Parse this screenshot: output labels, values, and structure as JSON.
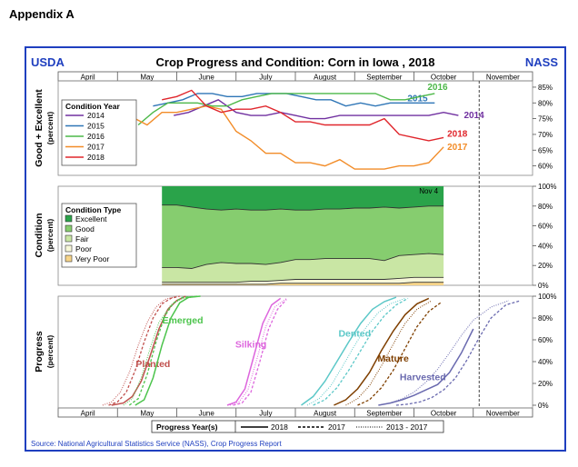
{
  "page": {
    "heading": "Appendix A"
  },
  "colors": {
    "frame": "#1f3fbf",
    "blue_text": "#1f3fbf"
  },
  "header": {
    "left": "USDA",
    "title": "Crop Progress and Condition: Corn in Iowa , 2018",
    "right": "NASS"
  },
  "months": [
    "April",
    "May",
    "June",
    "July",
    "August",
    "September",
    "October",
    "November"
  ],
  "top_panel": {
    "ylabel_line1": "Good + Excellent",
    "ylabel_line2": "(percent)",
    "ticks": [
      "60%",
      "65%",
      "70%",
      "75%",
      "80%",
      "85%"
    ],
    "tick_values": [
      60,
      65,
      70,
      75,
      80,
      85
    ],
    "ylim": [
      57,
      87
    ],
    "legend_title": "Condition Year",
    "series": [
      {
        "name": "2014",
        "color": "#7030a0",
        "end_label": "2014",
        "x": [
          5.95,
          6.2,
          6.45,
          6.7,
          7.0,
          7.25,
          7.5,
          7.75,
          8.0,
          8.25,
          8.5,
          8.75,
          9.0,
          9.25,
          9.5,
          9.75,
          10.0,
          10.25,
          10.5,
          10.75
        ],
        "y": [
          76,
          77,
          79,
          81,
          77,
          76,
          76,
          77,
          76,
          75,
          75,
          76,
          76,
          76,
          76,
          76,
          76,
          76,
          77,
          76
        ]
      },
      {
        "name": "2015",
        "color": "#2e75b6",
        "end_label": "2015",
        "x": [
          5.6,
          5.85,
          6.1,
          6.35,
          6.6,
          6.85,
          7.1,
          7.35,
          7.6,
          7.85,
          8.1,
          8.35,
          8.6,
          8.85,
          9.1,
          9.35,
          9.6,
          9.85,
          10.1,
          10.35
        ],
        "y": [
          79,
          80,
          81,
          83,
          83,
          82,
          82,
          83,
          83,
          83,
          82,
          81,
          81,
          79,
          80,
          79,
          80,
          80,
          80,
          80
        ]
      },
      {
        "name": "2016",
        "color": "#4cb848",
        "end_label": "2016",
        "x": [
          5.35,
          5.6,
          5.85,
          6.1,
          6.35,
          6.6,
          6.85,
          7.1,
          7.35,
          7.6,
          7.85,
          8.1,
          8.35,
          8.6,
          8.85,
          9.1,
          9.35,
          9.6,
          9.85,
          10.1,
          10.35
        ],
        "y": [
          73,
          77,
          80,
          80,
          80,
          79,
          79,
          81,
          82,
          83,
          83,
          83,
          83,
          83,
          83,
          83,
          83,
          81,
          81,
          82,
          83
        ]
      },
      {
        "name": "2017",
        "color": "#f28c28",
        "end_label": "2017",
        "x": [
          5.3,
          5.5,
          5.75,
          6.0,
          6.25,
          6.5,
          6.75,
          7.0,
          7.25,
          7.5,
          7.75,
          8.0,
          8.25,
          8.5,
          8.75,
          9.0,
          9.25,
          9.5,
          9.75,
          10.0,
          10.25,
          10.5
        ],
        "y": [
          75,
          73,
          77,
          77,
          78,
          79,
          78,
          71,
          68,
          64,
          64,
          61,
          61,
          60,
          62,
          59,
          59,
          59,
          60,
          60,
          61,
          66
        ]
      },
      {
        "name": "2018",
        "color": "#e0262c",
        "end_label": "2018",
        "x": [
          5.75,
          6.0,
          6.25,
          6.5,
          6.75,
          7.0,
          7.25,
          7.5,
          7.75,
          8.0,
          8.25,
          8.5,
          8.75,
          9.0,
          9.25,
          9.5,
          9.75,
          10.0,
          10.25,
          10.5
        ],
        "y": [
          81,
          82,
          84,
          79,
          77,
          78,
          78,
          79,
          77,
          74,
          74,
          73,
          73,
          73,
          73,
          75,
          70,
          69,
          68,
          69
        ]
      }
    ]
  },
  "middle_panel": {
    "ylabel_line1": "Condition",
    "ylabel_line2": "(percent)",
    "ticks": [
      "0%",
      "20%",
      "40%",
      "60%",
      "80%",
      "100%"
    ],
    "tick_values": [
      0,
      20,
      40,
      60,
      80,
      100
    ],
    "ylim": [
      0,
      100
    ],
    "legend_title": "Condition Type",
    "date_label": "Nov 4",
    "types": [
      {
        "name": "Excellent",
        "color": "#2aa34a"
      },
      {
        "name": "Good",
        "color": "#86cd6f"
      },
      {
        "name": "Fair",
        "color": "#c9e6a4"
      },
      {
        "name": "Poor",
        "color": "#f7f7d9"
      },
      {
        "name": "Very Poor",
        "color": "#f7d58a"
      }
    ],
    "x": [
      5.75,
      6.0,
      6.25,
      6.5,
      6.75,
      7.0,
      7.25,
      7.5,
      7.75,
      8.0,
      8.25,
      8.5,
      8.75,
      9.0,
      9.25,
      9.5,
      9.75,
      10.0,
      10.25,
      10.5
    ],
    "cum_very_poor": [
      1,
      1,
      1,
      1,
      1,
      1,
      1,
      1,
      2,
      2,
      2,
      2,
      2,
      2,
      2,
      2,
      2,
      3,
      3,
      3
    ],
    "cum_poor": [
      3,
      3,
      3,
      3,
      3,
      3,
      4,
      4,
      5,
      6,
      6,
      6,
      6,
      6,
      6,
      6,
      7,
      8,
      8,
      8
    ],
    "cum_fair": [
      18,
      18,
      17,
      21,
      23,
      22,
      22,
      21,
      23,
      26,
      26,
      27,
      27,
      27,
      27,
      25,
      30,
      31,
      32,
      31
    ],
    "cum_good": [
      81,
      81,
      79,
      77,
      76,
      77,
      76,
      76,
      77,
      76,
      76,
      77,
      77,
      78,
      78,
      79,
      78,
      79,
      80,
      80
    ]
  },
  "bottom_panel": {
    "ylabel_line1": "Progress",
    "ylabel_line2": "(percent)",
    "ticks": [
      "0%",
      "20%",
      "40%",
      "60%",
      "80%",
      "100%"
    ],
    "tick_values": [
      0,
      20,
      40,
      60,
      80,
      100
    ],
    "ylim": [
      0,
      100
    ],
    "stages": [
      {
        "name": "Planted",
        "color": "#c0504d",
        "x2018": [
          4.9,
          5.1,
          5.25,
          5.4,
          5.55,
          5.7,
          5.85,
          6.0,
          6.15
        ],
        "y2018": [
          0,
          2,
          8,
          22,
          45,
          70,
          88,
          96,
          100
        ],
        "x2017": [
          4.85,
          5.0,
          5.15,
          5.3,
          5.45,
          5.6,
          5.75,
          5.9,
          6.05
        ],
        "y2017": [
          0,
          3,
          12,
          32,
          58,
          80,
          93,
          98,
          100
        ],
        "x5yr": [
          4.75,
          4.9,
          5.05,
          5.2,
          5.35,
          5.5,
          5.65,
          5.8,
          6.0
        ],
        "y5yr": [
          0,
          3,
          12,
          30,
          55,
          76,
          90,
          97,
          100
        ],
        "label_x": 5.6,
        "label_y": 35
      },
      {
        "name": "Emerged",
        "color": "#4cc44c",
        "x2018": [
          5.3,
          5.45,
          5.6,
          5.75,
          5.9,
          6.05,
          6.2,
          6.4
        ],
        "y2018": [
          0,
          5,
          25,
          55,
          80,
          94,
          99,
          100
        ],
        "x2017": [
          5.2,
          5.35,
          5.5,
          5.65,
          5.8,
          5.95,
          6.1,
          6.35
        ],
        "y2017": [
          0,
          6,
          28,
          58,
          82,
          94,
          99,
          100
        ],
        "x5yr": [
          5.1,
          5.25,
          5.4,
          5.55,
          5.7,
          5.9,
          6.1,
          6.4
        ],
        "y5yr": [
          0,
          6,
          25,
          52,
          76,
          92,
          98,
          100
        ],
        "label_x": 6.1,
        "label_y": 75
      },
      {
        "name": "Silking",
        "color": "#dd66dd",
        "x2018": [
          6.85,
          7.0,
          7.15,
          7.3,
          7.45,
          7.6,
          7.75
        ],
        "y2018": [
          0,
          3,
          15,
          45,
          75,
          92,
          98
        ],
        "x2017": [
          6.95,
          7.1,
          7.25,
          7.4,
          7.55,
          7.7,
          7.85
        ],
        "y2017": [
          0,
          2,
          12,
          40,
          70,
          88,
          97
        ],
        "x5yr": [
          6.9,
          7.05,
          7.2,
          7.35,
          7.5,
          7.65,
          7.85
        ],
        "y5yr": [
          0,
          3,
          14,
          42,
          72,
          90,
          98
        ],
        "label_x": 7.25,
        "label_y": 53
      },
      {
        "name": "Dented",
        "color": "#5cc8c8",
        "x2018": [
          8.1,
          8.3,
          8.5,
          8.7,
          8.9,
          9.1,
          9.3,
          9.5,
          9.7
        ],
        "y2018": [
          0,
          8,
          22,
          40,
          58,
          75,
          88,
          95,
          99
        ],
        "x2017": [
          8.3,
          8.5,
          8.7,
          8.9,
          9.1,
          9.3,
          9.5,
          9.7,
          9.9
        ],
        "y2017": [
          0,
          5,
          16,
          32,
          50,
          68,
          82,
          92,
          98
        ],
        "x5yr": [
          8.2,
          8.4,
          8.6,
          8.8,
          9.0,
          9.2,
          9.4,
          9.6,
          9.85
        ],
        "y5yr": [
          0,
          6,
          18,
          36,
          55,
          72,
          85,
          93,
          98
        ],
        "label_x": 9.0,
        "label_y": 63
      },
      {
        "name": "Mature",
        "color": "#7f3f00",
        "x2018": [
          8.65,
          8.85,
          9.05,
          9.25,
          9.45,
          9.65,
          9.85,
          10.05,
          10.25
        ],
        "y2018": [
          0,
          5,
          15,
          30,
          50,
          68,
          83,
          93,
          98
        ],
        "x2017": [
          9.05,
          9.25,
          9.45,
          9.65,
          9.85,
          10.05,
          10.25,
          10.45
        ],
        "y2017": [
          0,
          5,
          16,
          32,
          52,
          72,
          86,
          94
        ],
        "x5yr": [
          8.85,
          9.05,
          9.25,
          9.45,
          9.65,
          9.85,
          10.05,
          10.3
        ],
        "y5yr": [
          0,
          6,
          18,
          36,
          56,
          75,
          88,
          96
        ],
        "label_x": 9.65,
        "label_y": 40
      },
      {
        "name": "Harvested",
        "color": "#6a6aaf",
        "x2018": [
          9.4,
          9.6,
          9.8,
          10.0,
          10.2,
          10.4,
          10.6,
          10.8,
          11.0
        ],
        "y2018": [
          0,
          2,
          5,
          9,
          14,
          19,
          30,
          48,
          70
        ],
        "x2017": [
          9.7,
          9.9,
          10.1,
          10.3,
          10.5,
          10.7,
          10.9,
          11.1,
          11.3,
          11.55,
          11.8
        ],
        "y2017": [
          0,
          1,
          3,
          7,
          14,
          25,
          42,
          62,
          80,
          92,
          96
        ],
        "x5yr": [
          9.4,
          9.6,
          9.8,
          10.0,
          10.2,
          10.4,
          10.6,
          10.8,
          11.0,
          11.3,
          11.6
        ],
        "y5yr": [
          0,
          2,
          6,
          12,
          21,
          33,
          48,
          64,
          78,
          90,
          96
        ],
        "label_x": 10.15,
        "label_y": 23
      }
    ]
  },
  "progress_legend": {
    "title": "Progress Year(s)",
    "items": [
      "2018",
      "2017",
      "2013 - 2017"
    ]
  },
  "current_week_line_x": 11.1,
  "source": "Source: National Agricultural Statistics Service (NASS), Crop Progress Report"
}
